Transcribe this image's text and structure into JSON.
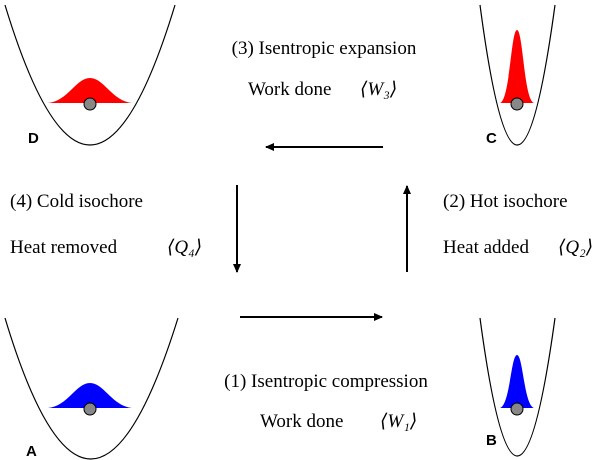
{
  "steps": [
    {
      "title": "(1) Isentropic compression",
      "quantity_label": "Work done",
      "quantity": "⟨W₁⟩"
    },
    {
      "title": "(2) Hot isochore",
      "quantity_label": "Heat added",
      "quantity": "⟨Q₂⟩"
    },
    {
      "title": "(3) Isentropic expansion",
      "quantity_label": "Work done",
      "quantity": "⟨W₃⟩"
    },
    {
      "title": "(4) Cold isochore",
      "quantity_label": "Heat removed",
      "quantity": "⟨Q₄⟩"
    }
  ],
  "nodes": [
    {
      "label": "A"
    },
    {
      "label": "B"
    },
    {
      "label": "C"
    },
    {
      "label": "D"
    }
  ]
}
